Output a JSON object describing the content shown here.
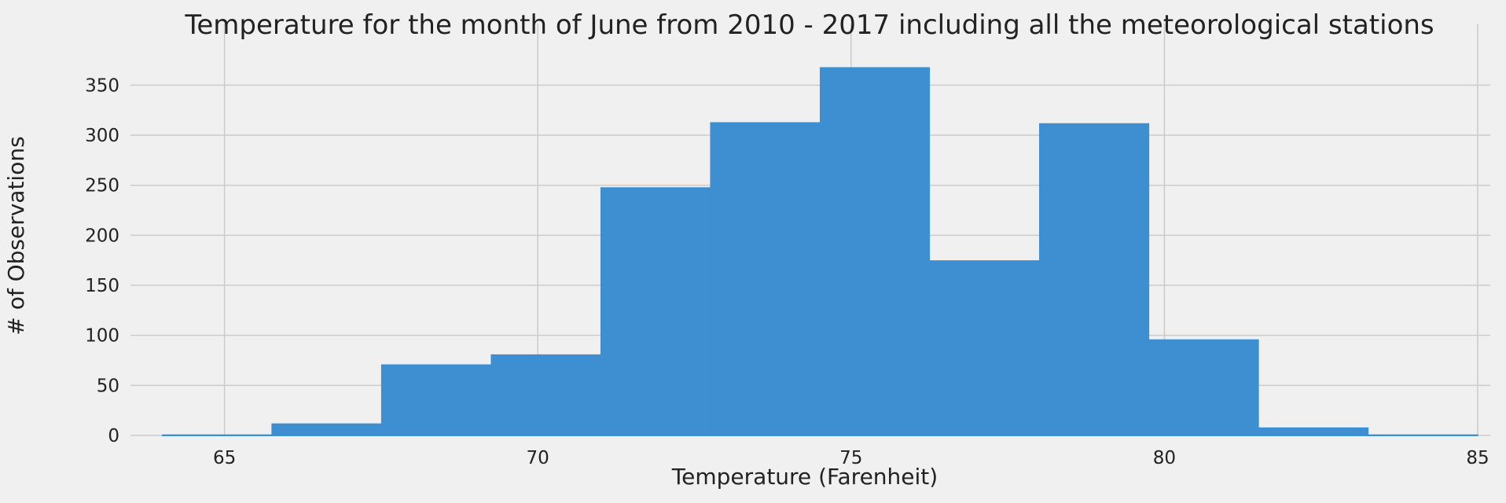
{
  "chart_data": {
    "type": "bar",
    "title": "Temperature for the month of June from 2010 - 2017 including all the meteorological stations",
    "xlabel": "Temperature (Farenheit)",
    "ylabel": "# of Observations",
    "xlim": [
      63.5,
      85.2
    ],
    "ylim": [
      0,
      388
    ],
    "x_ticks": [
      65,
      70,
      75,
      80,
      85
    ],
    "y_ticks": [
      0,
      50,
      100,
      150,
      200,
      250,
      300,
      350
    ],
    "grid": true,
    "bins": [
      {
        "start": 64.0,
        "end": 65.75,
        "count": 1
      },
      {
        "start": 65.75,
        "end": 67.5,
        "count": 12
      },
      {
        "start": 67.5,
        "end": 69.25,
        "count": 71
      },
      {
        "start": 69.25,
        "end": 71.0,
        "count": 81
      },
      {
        "start": 71.0,
        "end": 72.75,
        "count": 248
      },
      {
        "start": 72.75,
        "end": 74.5,
        "count": 313
      },
      {
        "start": 74.5,
        "end": 76.25,
        "count": 368
      },
      {
        "start": 76.25,
        "end": 78.0,
        "count": 175
      },
      {
        "start": 78.0,
        "end": 79.75,
        "count": 312
      },
      {
        "start": 79.75,
        "end": 81.5,
        "count": 96
      },
      {
        "start": 81.5,
        "end": 83.25,
        "count": 8
      },
      {
        "start": 83.25,
        "end": 85.0,
        "count": 1
      }
    ],
    "colors": {
      "bar": "#3d8fd1",
      "grid": "#cbcbcb",
      "background": "#f0f0f0"
    }
  }
}
